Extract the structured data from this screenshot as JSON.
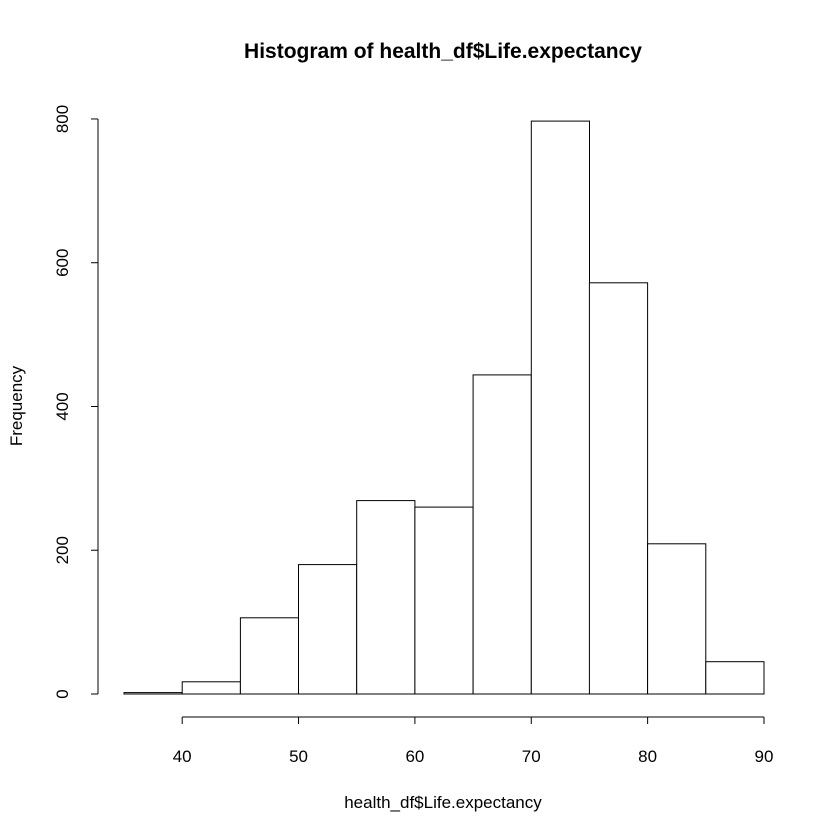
{
  "chart_data": {
    "type": "bar",
    "title": "Histogram of health_df$Life.expectancy",
    "xlabel": "health_df$Life.expectancy",
    "ylabel": "Frequency",
    "bins": [
      {
        "start": 35,
        "end": 40,
        "count": 2
      },
      {
        "start": 40,
        "end": 45,
        "count": 17
      },
      {
        "start": 45,
        "end": 50,
        "count": 106
      },
      {
        "start": 50,
        "end": 55,
        "count": 180
      },
      {
        "start": 55,
        "end": 60,
        "count": 269
      },
      {
        "start": 60,
        "end": 65,
        "count": 260
      },
      {
        "start": 65,
        "end": 70,
        "count": 444
      },
      {
        "start": 70,
        "end": 75,
        "count": 797
      },
      {
        "start": 75,
        "end": 80,
        "count": 572
      },
      {
        "start": 80,
        "end": 85,
        "count": 209
      },
      {
        "start": 85,
        "end": 90,
        "count": 45
      }
    ],
    "xticks": [
      40,
      50,
      60,
      70,
      80,
      90
    ],
    "yticks": [
      0,
      200,
      400,
      600,
      800
    ],
    "xlim": [
      35,
      90
    ],
    "ylim": [
      0,
      800
    ],
    "grid": false,
    "colors": {
      "bar_fill": "#ffffff",
      "bar_stroke": "#000000"
    }
  }
}
